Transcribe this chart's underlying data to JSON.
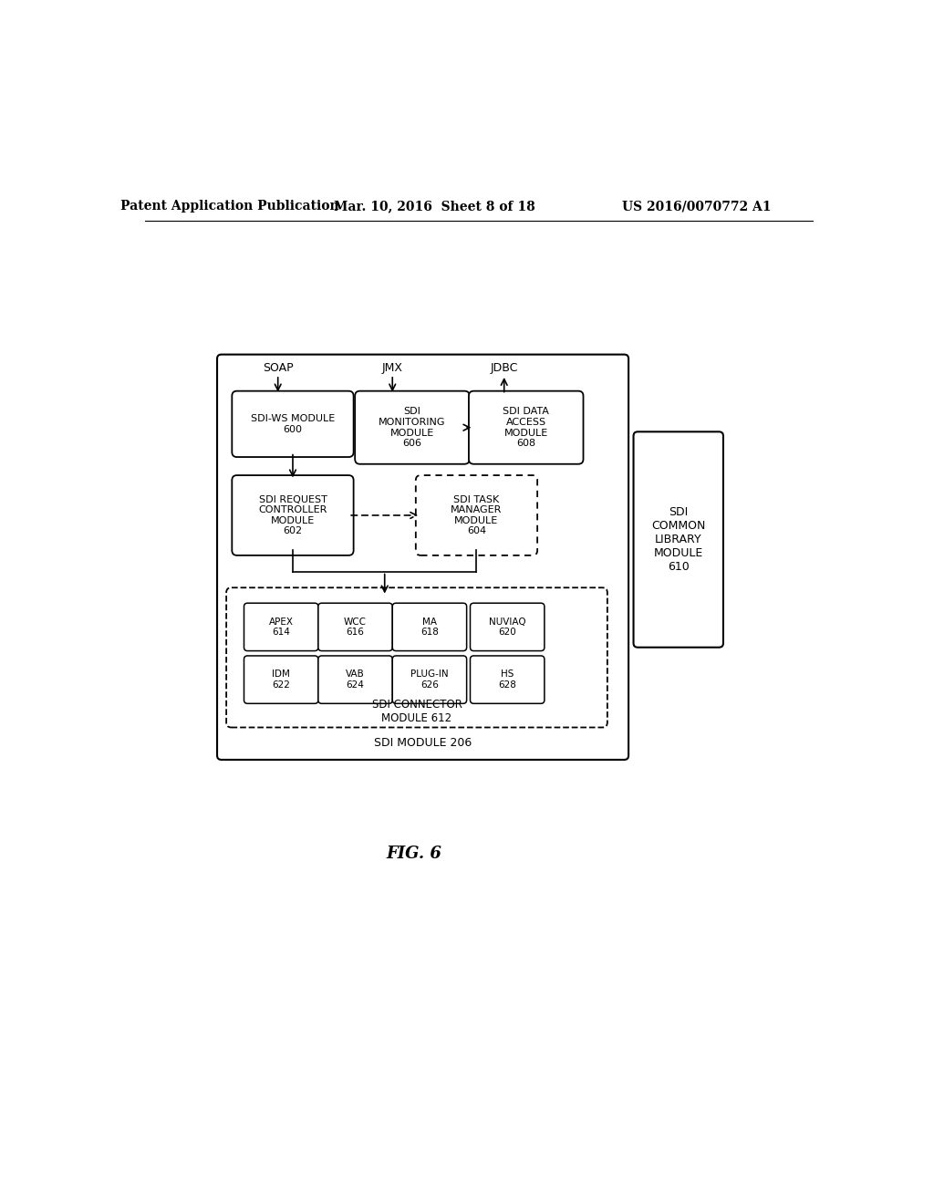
{
  "bg_color": "#ffffff",
  "header_left": "Patent Application Publication",
  "header_mid": "Mar. 10, 2016  Sheet 8 of 18",
  "header_right": "US 2016/0070772 A1",
  "fig_label": "FIG. 6",
  "outer_box_label": "SDI MODULE 206",
  "right_box_label": "SDI\nCOMMON\nLIBRARY\nMODULE\n610",
  "connector_box_label": "SDI CONNECTOR\nMODULE 612",
  "soap_label": "SOAP",
  "jmx_label": "JMX",
  "jdbc_label": "JDBC",
  "mod_600_label": "SDI-WS MODULE\n600",
  "mod_606_label": "SDI\nMONITORING\nMODULE\n606",
  "mod_608_label": "SDI DATA\nACCESS\nMODULE\n608",
  "mod_602_label": "SDI REQUEST\nCONTROLLER\nMODULE\n602",
  "mod_604_label": "SDI TASK\nMANAGER\nMODULE\n604",
  "mod_apex_label": "APEX\n614",
  "mod_wcc_label": "WCC\n616",
  "mod_ma_label": "MA\n618",
  "mod_nuviaq_label": "NUVIAQ\n620",
  "mod_idm_label": "IDM\n622",
  "mod_vab_label": "VAB\n624",
  "mod_plugin_label": "PLUG-IN\n626",
  "mod_hs_label": "HS\n628",
  "font_size_header": 10,
  "font_size_module": 8,
  "font_size_small": 7.5,
  "font_size_outer": 9,
  "font_size_fig": 13
}
